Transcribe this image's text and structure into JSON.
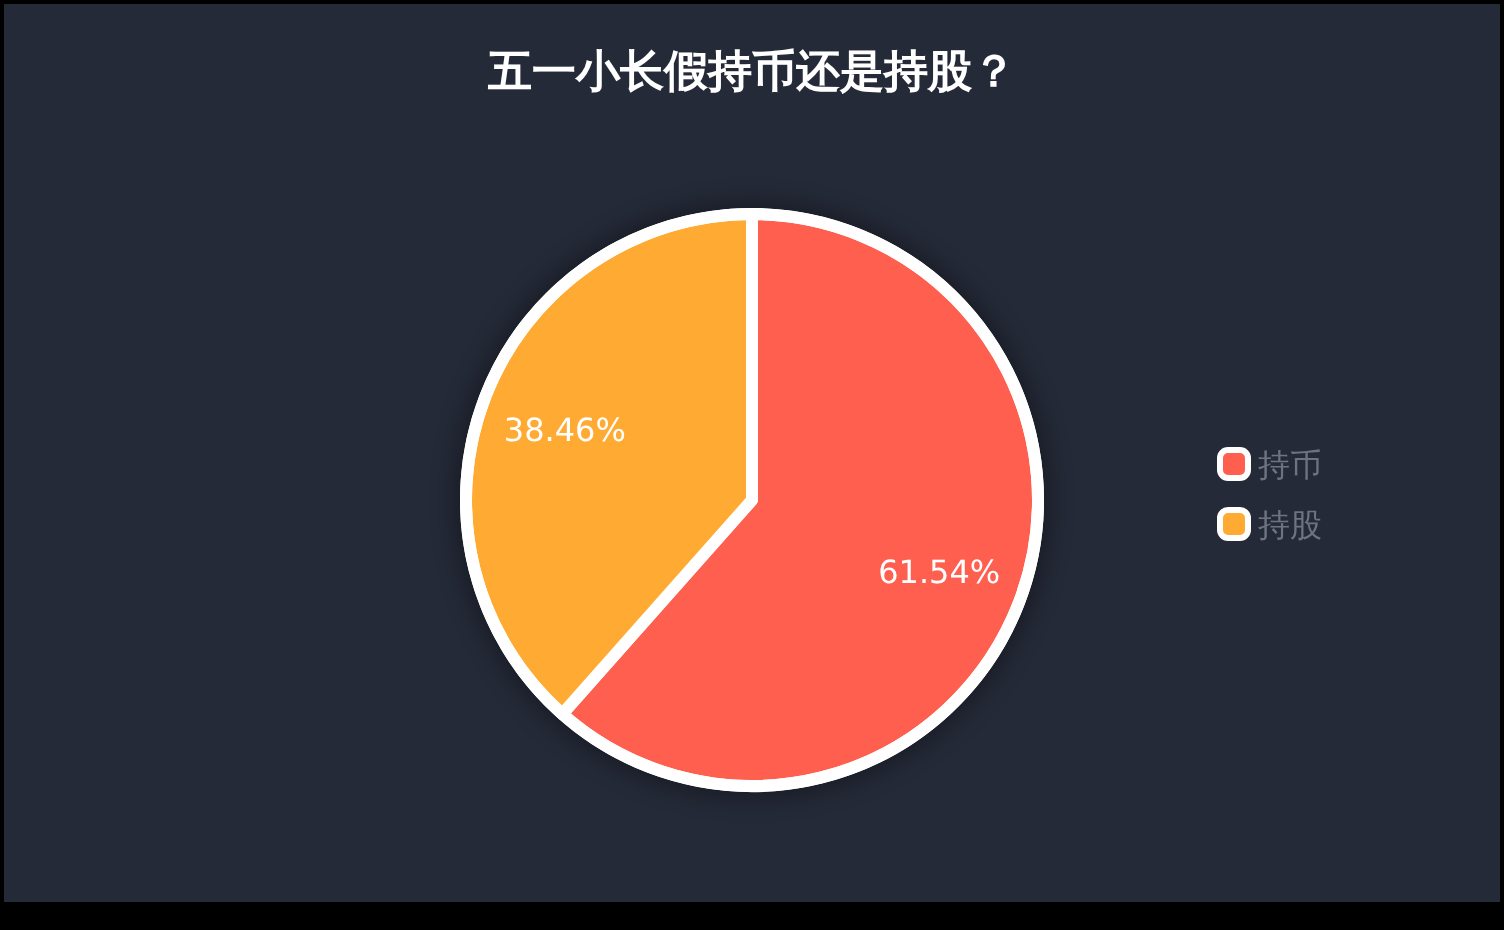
{
  "chart_data": {
    "type": "pie",
    "title": "五一小长假持币还是持股？",
    "categories": [
      "持币",
      "持股"
    ],
    "values": [
      61.54,
      38.46
    ],
    "value_labels": [
      "61.54%",
      "38.46%"
    ],
    "colors": [
      "#ff5f4e",
      "#ffaa33"
    ],
    "legend": "right"
  }
}
